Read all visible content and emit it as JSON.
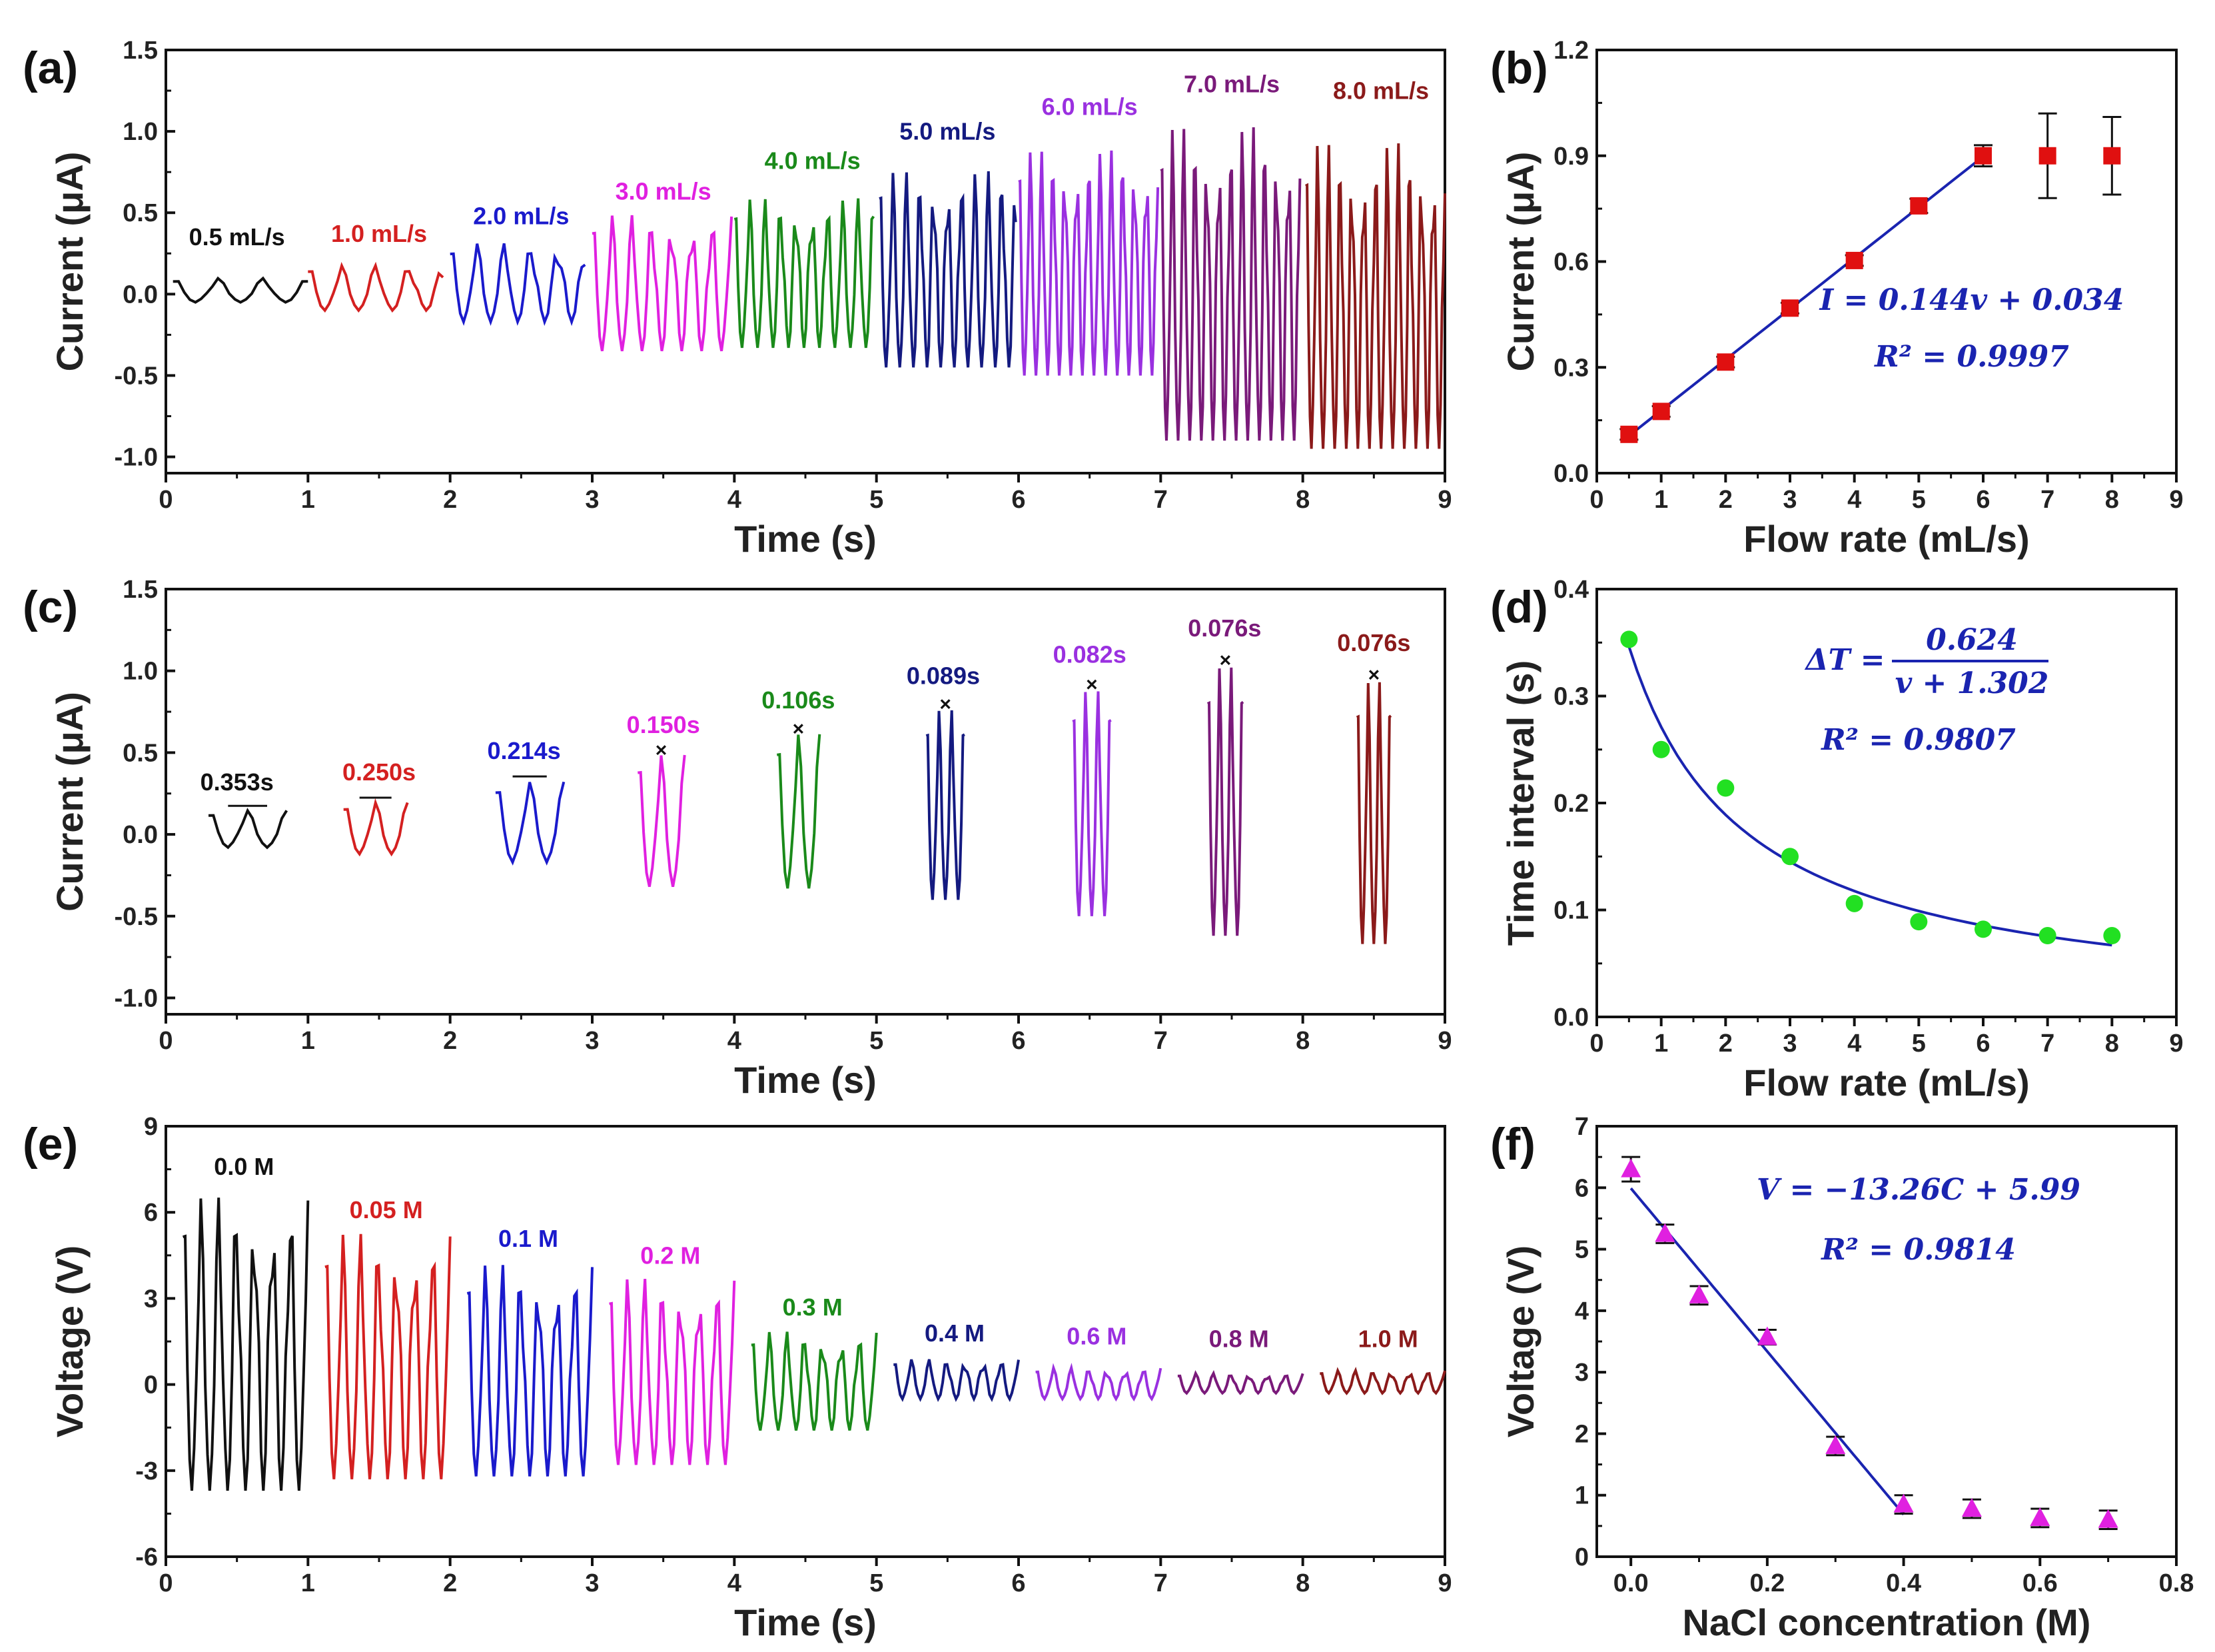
{
  "chart_data": [
    {
      "id": "a",
      "panel_label": "(a)",
      "type": "line",
      "xlabel": "Time (s)",
      "ylabel": "Current (μA)",
      "xlim": [
        0,
        9
      ],
      "ylim": [
        -1.1,
        1.5
      ],
      "xticks": [
        0,
        1,
        2,
        3,
        4,
        5,
        6,
        7,
        8,
        9
      ],
      "yticks": [
        -1.0,
        -0.5,
        0.0,
        0.5,
        1.0,
        1.5
      ],
      "series": [
        {
          "name": "0.5 mL/s",
          "color": "#111111",
          "t": [
            0.05,
            1.0
          ],
          "min": -0.05,
          "max": 0.1,
          "peaks": 3,
          "label_at": [
            0.5,
            0.3
          ]
        },
        {
          "name": "1.0 mL/s",
          "color": "#d42020",
          "t": [
            1.0,
            1.95
          ],
          "min": -0.1,
          "max": 0.18,
          "peaks": 4,
          "label_at": [
            1.5,
            0.32
          ]
        },
        {
          "name": "2.0 mL/s",
          "color": "#1a1acc",
          "t": [
            2.0,
            2.95
          ],
          "min": -0.17,
          "max": 0.32,
          "peaks": 5,
          "label_at": [
            2.5,
            0.43
          ]
        },
        {
          "name": "3.0 mL/s",
          "color": "#e020e0",
          "t": [
            3.0,
            3.98
          ],
          "min": -0.35,
          "max": 0.5,
          "peaks": 7,
          "label_at": [
            3.5,
            0.58
          ]
        },
        {
          "name": "4.0 mL/s",
          "color": "#1a8a1a",
          "t": [
            4.0,
            4.98
          ],
          "min": -0.33,
          "max": 0.6,
          "peaks": 9,
          "label_at": [
            4.55,
            0.77
          ]
        },
        {
          "name": "5.0 mL/s",
          "color": "#141a80",
          "t": [
            5.02,
            5.98
          ],
          "min": -0.45,
          "max": 0.77,
          "peaks": 10,
          "label_at": [
            5.5,
            0.95
          ]
        },
        {
          "name": "6.0 mL/s",
          "color": "#9a30e0",
          "t": [
            6.0,
            6.98
          ],
          "min": -0.5,
          "max": 0.9,
          "peaks": 12,
          "label_at": [
            6.5,
            1.1
          ]
        },
        {
          "name": "7.0 mL/s",
          "color": "#7a1a7a",
          "t": [
            7.0,
            7.98
          ],
          "min": -0.9,
          "max": 1.05,
          "peaks": 12,
          "label_at": [
            7.5,
            1.24
          ]
        },
        {
          "name": "8.0 mL/s",
          "color": "#8b1a1a",
          "t": [
            8.02,
            9.0
          ],
          "min": -0.95,
          "max": 0.95,
          "peaks": 12,
          "label_at": [
            8.55,
            1.2
          ]
        }
      ]
    },
    {
      "id": "b",
      "panel_label": "(b)",
      "type": "scatter",
      "xlabel": "Flow rate (mL/s)",
      "ylabel": "Current (μA)",
      "xlim": [
        0,
        9
      ],
      "ylim": [
        0,
        1.2
      ],
      "xticks": [
        0,
        1,
        2,
        3,
        4,
        5,
        6,
        7,
        8,
        9
      ],
      "yticks": [
        0.0,
        0.3,
        0.6,
        0.9,
        1.2
      ],
      "marker": "square",
      "color": "#e01010",
      "x": [
        0.5,
        1,
        2,
        3,
        4,
        5,
        6,
        7,
        8
      ],
      "y": [
        0.11,
        0.175,
        0.315,
        0.468,
        0.603,
        0.758,
        0.9,
        0.9,
        0.9
      ],
      "err": [
        0.015,
        0.015,
        0.015,
        0.015,
        0.015,
        0.02,
        0.03,
        0.12,
        0.11
      ],
      "fit": {
        "type": "linear",
        "slope": 0.144,
        "intercept": 0.034,
        "range": [
          0.5,
          6
        ],
        "color": "#1a24b0"
      },
      "annotations": [
        "I = 0.144v + 0.034",
        "R² = 0.9997"
      ]
    },
    {
      "id": "c",
      "panel_label": "(c)",
      "type": "line",
      "xlabel": "Time (s)",
      "ylabel": "Current (μA)",
      "xlim": [
        0,
        9
      ],
      "ylim": [
        -1.1,
        1.5
      ],
      "xticks": [
        0,
        1,
        2,
        3,
        4,
        5,
        6,
        7,
        8,
        9
      ],
      "yticks": [
        -1.0,
        -0.5,
        0.0,
        0.5,
        1.0,
        1.5
      ],
      "series": [
        {
          "name": "0.353s",
          "color": "#111111",
          "t": [
            0.3,
            0.85
          ],
          "min": -0.08,
          "max": 0.15,
          "peaks": 2,
          "label_at": [
            0.5,
            0.27
          ]
        },
        {
          "name": "0.250s",
          "color": "#d42020",
          "t": [
            1.25,
            1.7
          ],
          "min": -0.12,
          "max": 0.2,
          "peaks": 2,
          "label_at": [
            1.5,
            0.33
          ]
        },
        {
          "name": "0.214s",
          "color": "#1a1acc",
          "t": [
            2.32,
            2.8
          ],
          "min": -0.17,
          "max": 0.33,
          "peaks": 2,
          "label_at": [
            2.52,
            0.46
          ]
        },
        {
          "name": "0.150s",
          "color": "#e020e0",
          "t": [
            3.32,
            3.65
          ],
          "min": -0.32,
          "max": 0.5,
          "peaks": 2,
          "label_at": [
            3.5,
            0.62
          ]
        },
        {
          "name": "0.106s",
          "color": "#1a8a1a",
          "t": [
            4.3,
            4.6
          ],
          "min": -0.33,
          "max": 0.63,
          "peaks": 2,
          "label_at": [
            4.45,
            0.77
          ]
        },
        {
          "name": "0.089s",
          "color": "#141a80",
          "t": [
            5.35,
            5.62
          ],
          "min": -0.4,
          "max": 0.78,
          "peaks": 3,
          "label_at": [
            5.47,
            0.92
          ]
        },
        {
          "name": "0.082s",
          "color": "#9a30e0",
          "t": [
            6.38,
            6.65
          ],
          "min": -0.5,
          "max": 0.9,
          "peaks": 3,
          "label_at": [
            6.5,
            1.05
          ]
        },
        {
          "name": "0.076s",
          "color": "#7a1a7a",
          "t": [
            7.33,
            7.58
          ],
          "min": -0.62,
          "max": 1.05,
          "peaks": 3,
          "label_at": [
            7.45,
            1.21
          ]
        },
        {
          "name": "0.076s",
          "color": "#8b1a1a",
          "t": [
            8.38,
            8.62
          ],
          "min": -0.67,
          "max": 0.96,
          "peaks": 3,
          "label_at": [
            8.5,
            1.12
          ]
        }
      ]
    },
    {
      "id": "d",
      "panel_label": "(d)",
      "type": "scatter",
      "xlabel": "Flow rate (mL/s)",
      "ylabel": "Time interval (s)",
      "xlim": [
        0,
        9
      ],
      "ylim": [
        0,
        0.4
      ],
      "xticks": [
        0,
        1,
        2,
        3,
        4,
        5,
        6,
        7,
        8,
        9
      ],
      "yticks": [
        0.0,
        0.1,
        0.2,
        0.3,
        0.4
      ],
      "marker": "circle",
      "color": "#22e022",
      "x": [
        0.5,
        1,
        2,
        3,
        4,
        5,
        6,
        7,
        8
      ],
      "y": [
        0.353,
        0.25,
        0.214,
        0.15,
        0.106,
        0.089,
        0.082,
        0.076,
        0.076
      ],
      "fit": {
        "type": "reciprocal",
        "a": 0.624,
        "b": 1.302,
        "range": [
          0.5,
          8
        ],
        "color": "#1a24b0"
      },
      "annotations": [
        "ΔT =",
        "0.624",
        "v + 1.302",
        "R² = 0.9807"
      ]
    },
    {
      "id": "e",
      "panel_label": "(e)",
      "type": "line",
      "xlabel": "Time (s)",
      "ylabel": "Voltage (V)",
      "xlim": [
        0,
        9
      ],
      "ylim": [
        -6,
        9
      ],
      "xticks": [
        0,
        1,
        2,
        3,
        4,
        5,
        6,
        7,
        8,
        9
      ],
      "yticks": [
        -6,
        -3,
        0,
        3,
        6,
        9
      ],
      "series": [
        {
          "name": "0.0 M",
          "color": "#111111",
          "t": [
            0.12,
            1.0
          ],
          "min": -3.7,
          "max": 6.7,
          "peaks": 7,
          "label_at": [
            0.55,
            7.3
          ]
        },
        {
          "name": "0.05 M",
          "color": "#d42020",
          "t": [
            1.12,
            2.0
          ],
          "min": -3.3,
          "max": 5.4,
          "peaks": 7,
          "label_at": [
            1.55,
            5.8
          ]
        },
        {
          "name": "0.1 M",
          "color": "#1a1acc",
          "t": [
            2.12,
            3.0
          ],
          "min": -3.2,
          "max": 4.3,
          "peaks": 7,
          "label_at": [
            2.55,
            4.8
          ]
        },
        {
          "name": "0.2 M",
          "color": "#e020e0",
          "t": [
            3.12,
            4.0
          ],
          "min": -2.8,
          "max": 3.8,
          "peaks": 7,
          "label_at": [
            3.55,
            4.2
          ]
        },
        {
          "name": "0.3 M",
          "color": "#1a8a1a",
          "t": [
            4.12,
            5.0
          ],
          "min": -1.6,
          "max": 1.9,
          "peaks": 7,
          "label_at": [
            4.55,
            2.4
          ]
        },
        {
          "name": "0.4 M",
          "color": "#141a80",
          "t": [
            5.12,
            6.0
          ],
          "min": -0.5,
          "max": 0.9,
          "peaks": 7,
          "label_at": [
            5.55,
            1.5
          ]
        },
        {
          "name": "0.6 M",
          "color": "#9a30e0",
          "t": [
            6.12,
            7.0
          ],
          "min": -0.5,
          "max": 0.6,
          "peaks": 7,
          "label_at": [
            6.55,
            1.4
          ]
        },
        {
          "name": "0.8 M",
          "color": "#7a1a7a",
          "t": [
            7.12,
            8.0
          ],
          "min": -0.3,
          "max": 0.4,
          "peaks": 7,
          "label_at": [
            7.55,
            1.3
          ]
        },
        {
          "name": "1.0 M",
          "color": "#8b1a1a",
          "t": [
            8.12,
            9.0
          ],
          "min": -0.3,
          "max": 0.5,
          "peaks": 7,
          "label_at": [
            8.6,
            1.3
          ]
        }
      ]
    },
    {
      "id": "f",
      "panel_label": "(f)",
      "type": "scatter",
      "xlabel": "NaCl concentration (M)",
      "ylabel": "Voltage (V)",
      "xlim": [
        -0.05,
        0.8
      ],
      "ylim": [
        0,
        7
      ],
      "xticks": [
        0.0,
        0.2,
        0.4,
        0.6,
        0.8
      ],
      "yticks": [
        0,
        1,
        2,
        3,
        4,
        5,
        6,
        7
      ],
      "marker": "triangle",
      "color": "#e020e0",
      "x": [
        0,
        0.05,
        0.1,
        0.2,
        0.3,
        0.4,
        0.5,
        0.6,
        0.7
      ],
      "y": [
        6.3,
        5.25,
        4.25,
        3.57,
        1.8,
        0.85,
        0.78,
        0.63,
        0.6
      ],
      "err": [
        0.2,
        0.15,
        0.15,
        0.12,
        0.15,
        0.15,
        0.15,
        0.15,
        0.15
      ],
      "fit": {
        "type": "linear",
        "slope": -13.26,
        "intercept": 5.99,
        "range": [
          0,
          0.4
        ],
        "color": "#1a24b0"
      },
      "annotations": [
        "V = −13.26C + 5.99",
        "R² = 0.9814"
      ]
    }
  ]
}
